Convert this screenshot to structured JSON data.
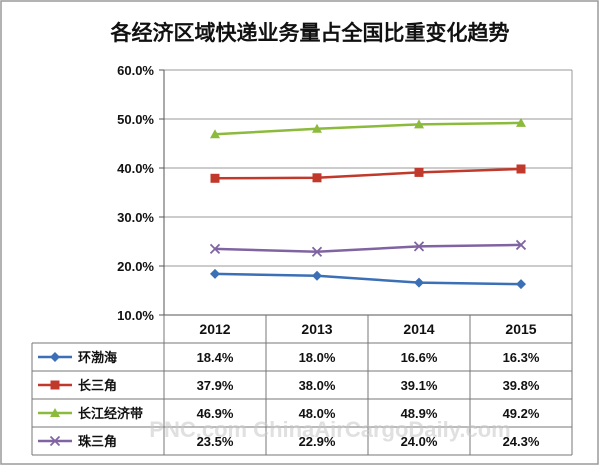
{
  "chart_data": {
    "type": "line",
    "title": "各经济区域快递业务量占全国比重变化趋势",
    "categories": [
      "2012",
      "2013",
      "2014",
      "2015"
    ],
    "ylim": [
      10,
      60
    ],
    "yticks": [
      10,
      20,
      30,
      40,
      50,
      60
    ],
    "ytick_labels": [
      "10.0%",
      "20.0%",
      "30.0%",
      "40.0%",
      "50.0%",
      "60.0%"
    ],
    "grid": true,
    "legend": "data-table-below",
    "series": [
      {
        "name": "环渤海",
        "color": "#3b6fb6",
        "marker": "diamond",
        "values": [
          18.4,
          18.0,
          16.6,
          16.3
        ],
        "labels": [
          "18.4%",
          "18.0%",
          "16.6%",
          "16.3%"
        ]
      },
      {
        "name": "长三角",
        "color": "#c0392b",
        "marker": "square",
        "values": [
          37.9,
          38.0,
          39.1,
          39.8
        ],
        "labels": [
          "37.9%",
          "38.0%",
          "39.1%",
          "39.8%"
        ]
      },
      {
        "name": "长江经济带",
        "color": "#8cba3c",
        "marker": "triangle",
        "values": [
          46.9,
          48.0,
          48.9,
          49.2
        ],
        "labels": [
          "46.9%",
          "48.0%",
          "48.9%",
          "49.2%"
        ]
      },
      {
        "name": "珠三角",
        "color": "#8064a2",
        "marker": "x",
        "values": [
          23.5,
          22.9,
          24.0,
          24.3
        ],
        "labels": [
          "23.5%",
          "22.9%",
          "24.0%",
          "24.3%"
        ]
      }
    ]
  },
  "watermark": "PNC.com  ChinaAirCargoDaily.com"
}
